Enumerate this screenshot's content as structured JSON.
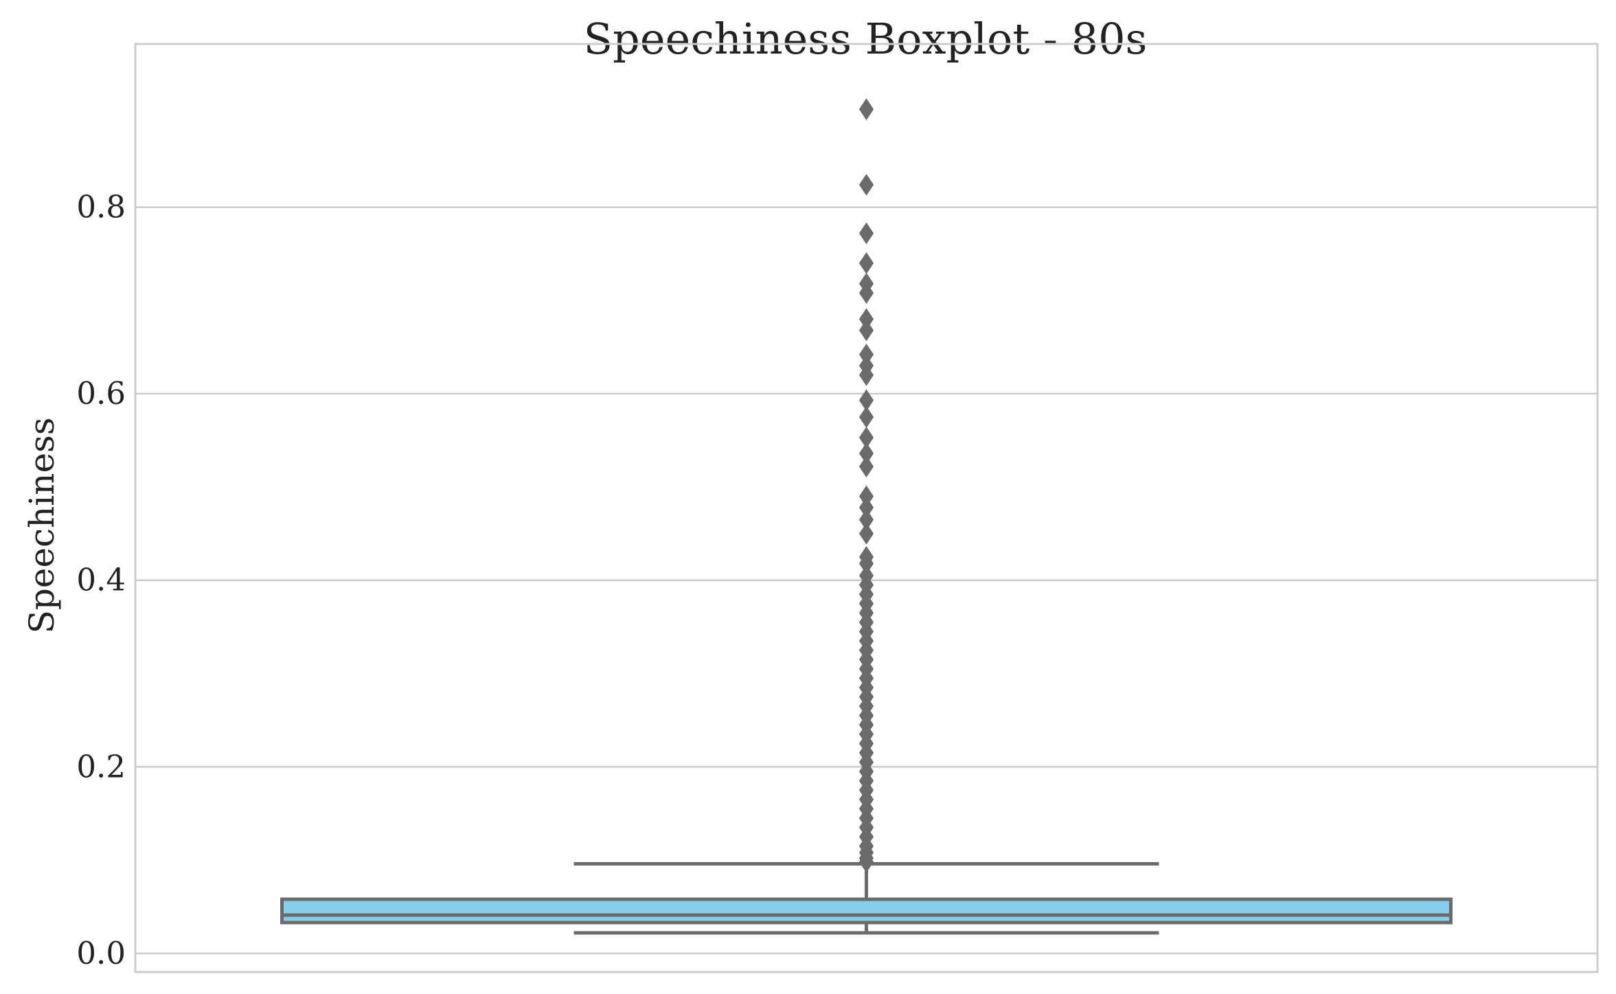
{
  "chart_data": {
    "type": "box",
    "title": "Speechiness Boxplot - 80s",
    "xlabel": "",
    "ylabel": "Speechiness",
    "ylim": [
      -0.02,
      0.975
    ],
    "yticks": [
      0.0,
      0.2,
      0.4,
      0.6,
      0.8
    ],
    "ytick_labels": [
      "0.0",
      "0.2",
      "0.4",
      "0.6",
      "0.8"
    ],
    "grid": true,
    "box": {
      "whisker_low": 0.022,
      "q1": 0.033,
      "median": 0.041,
      "q3": 0.058,
      "whisker_high": 0.096
    },
    "outliers": [
      0.905,
      0.824,
      0.772,
      0.74,
      0.718,
      0.708,
      0.68,
      0.668,
      0.642,
      0.63,
      0.62,
      0.593,
      0.575,
      0.553,
      0.536,
      0.522,
      0.49,
      0.478,
      0.465,
      0.45,
      0.425,
      0.418,
      0.405,
      0.395,
      0.385,
      0.375,
      0.365,
      0.355,
      0.345,
      0.335,
      0.325,
      0.315,
      0.305,
      0.295,
      0.285,
      0.275,
      0.265,
      0.255,
      0.245,
      0.235,
      0.225,
      0.215,
      0.205,
      0.195,
      0.185,
      0.175,
      0.165,
      0.155,
      0.145,
      0.135,
      0.125,
      0.115,
      0.108,
      0.102,
      0.098
    ],
    "colors": {
      "box_fill": "#87CEEB",
      "line": "#6b6b6b",
      "grid": "#cccccc",
      "spine": "#cccccc"
    }
  }
}
